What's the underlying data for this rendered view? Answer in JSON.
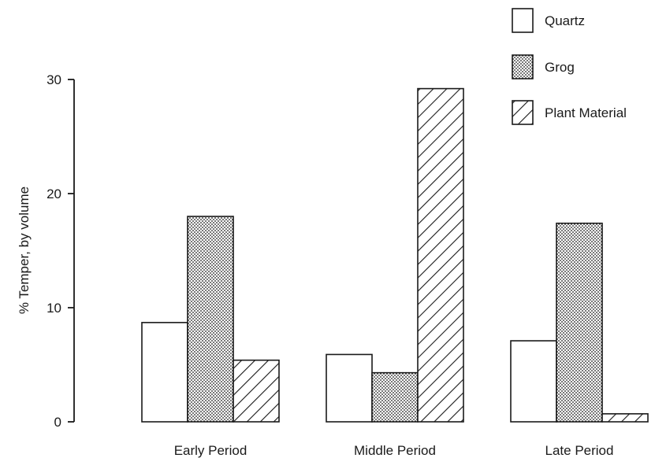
{
  "chart_data": {
    "type": "bar",
    "title": "",
    "xlabel": "",
    "ylabel": "% Temper, by volume",
    "ylim": [
      0,
      30
    ],
    "yticks": [
      0,
      10,
      20,
      30
    ],
    "grid": false,
    "legend_position": "top-right",
    "categories": [
      "Early Period",
      "Middle Period",
      "Late Period"
    ],
    "series": [
      {
        "name": "Quartz",
        "pattern": "empty",
        "values": [
          8.7,
          5.9,
          7.1
        ]
      },
      {
        "name": "Grog",
        "pattern": "dotted",
        "values": [
          18.0,
          4.3,
          17.4
        ]
      },
      {
        "name": "Plant Material",
        "pattern": "hatched",
        "values": [
          5.4,
          29.2,
          0.7
        ]
      }
    ]
  }
}
